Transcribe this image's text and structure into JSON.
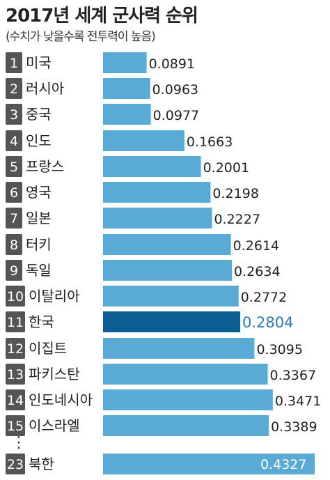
{
  "header": {
    "title": "2017년 세계 군사력 순위",
    "subtitle": "(수치가 낮을수록 전투력이 높음)"
  },
  "colors": {
    "bar": "#5aaad6",
    "highlight_bar": "#0b5d93",
    "highlight_text": "#2a7ab8",
    "rank_badge": "#555555"
  },
  "chart_data": {
    "type": "bar",
    "orientation": "horizontal",
    "title": "2017년 세계 군사력 순위",
    "subtitle": "(수치가 낮을수록 전투력이 높음)",
    "ranks": [
      "1",
      "2",
      "3",
      "4",
      "5",
      "6",
      "7",
      "8",
      "9",
      "10",
      "11",
      "12",
      "13",
      "14",
      "15",
      "23"
    ],
    "categories": [
      "미국",
      "러시아",
      "중국",
      "인도",
      "프랑스",
      "영국",
      "일본",
      "터키",
      "독일",
      "이탈리아",
      "한국",
      "이집트",
      "파키스탄",
      "인도네시아",
      "이스라엘",
      "북한"
    ],
    "values": [
      0.0891,
      0.0963,
      0.0977,
      0.1663,
      0.2001,
      0.2198,
      0.2227,
      0.2614,
      0.2634,
      0.2772,
      0.2804,
      0.3095,
      0.3367,
      0.3471,
      0.3389,
      0.4327
    ],
    "value_labels": [
      "0.0891",
      "0.0963",
      "0.0977",
      "0.1663",
      "0.2001",
      "0.2198",
      "0.2227",
      "0.2614",
      "0.2634",
      "0.2772",
      "0.2804",
      "0.3095",
      "0.3367",
      "0.3471",
      "0.3389",
      "0.4327"
    ],
    "highlight": "한국",
    "gap_marker": "⋮",
    "grid": false
  }
}
